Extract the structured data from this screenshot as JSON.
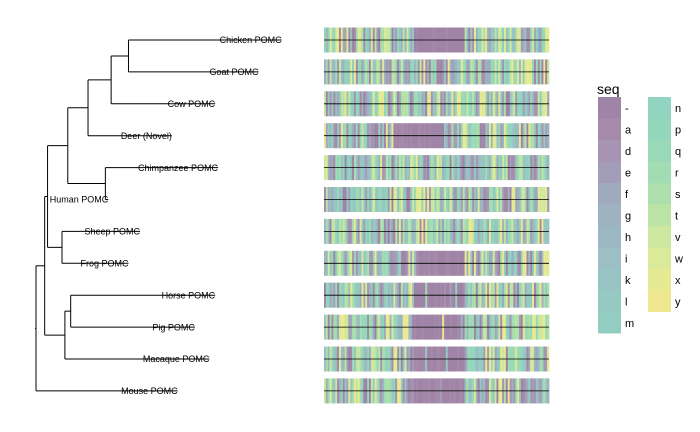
{
  "chart_data": {
    "type": "heatmap",
    "title": "",
    "tree": {
      "tips": [
        "Chicken POMC",
        "Goat POMC",
        "Cow POMC",
        "Deer (Novel)",
        "Chimpanzee POMC",
        "Human POMC",
        "Sheep POMC",
        "Frog POMC",
        "Horse POMC",
        "Pig POMC",
        "Macaque POMC",
        "Mouse POMC"
      ],
      "tip_depth": [
        0.85,
        0.77,
        0.62,
        0.47,
        0.63,
        0.25,
        0.36,
        0.32,
        0.62,
        0.55,
        0.6,
        0.49
      ],
      "clades": [
        {
          "children": [
            "Chicken POMC",
            "Goat POMC"
          ],
          "depth": 0.32
        },
        {
          "children": [
            "Chicken POMC",
            "Goat POMC",
            "Cow POMC"
          ],
          "depth": 0.26
        },
        {
          "children": [
            "Chicken POMC",
            "Goat POMC",
            "Cow POMC",
            "Deer (Novel)"
          ],
          "depth": 0.18
        },
        {
          "children": [
            "Chimpanzee POMC",
            "Human POMC"
          ],
          "depth": 0.24
        },
        {
          "children": [
            "Chicken POMC",
            "Goat POMC",
            "Cow POMC",
            "Deer (Novel)",
            "Chimpanzee POMC",
            "Human POMC"
          ],
          "depth": 0.11
        },
        {
          "children": [
            "Sheep POMC",
            "Frog POMC"
          ],
          "depth": 0.09
        },
        {
          "children": [
            "Chicken POMC",
            "Goat POMC",
            "Cow POMC",
            "Deer (Novel)",
            "Chimpanzee POMC",
            "Human POMC",
            "Sheep POMC",
            "Frog POMC"
          ],
          "depth": 0.04
        },
        {
          "children": [
            "Horse POMC",
            "Pig POMC"
          ],
          "depth": 0.12
        },
        {
          "children": [
            "Horse POMC",
            "Pig POMC",
            "Macaque POMC"
          ],
          "depth": 0.1
        },
        {
          "children": [
            "Chicken POMC",
            "Goat POMC",
            "Cow POMC",
            "Deer (Novel)",
            "Chimpanzee POMC",
            "Human POMC",
            "Sheep POMC",
            "Frog POMC",
            "Horse POMC",
            "Pig POMC",
            "Macaque POMC"
          ],
          "depth": 0.03
        },
        {
          "children": [
            "Chicken POMC",
            "Goat POMC",
            "Cow POMC",
            "Deer (Novel)",
            "Chimpanzee POMC",
            "Human POMC",
            "Sheep POMC",
            "Frog POMC",
            "Horse POMC",
            "Pig POMC",
            "Macaque POMC",
            "Mouse POMC"
          ],
          "depth": 0.0
        }
      ]
    },
    "alignment": {
      "length": 120,
      "gap_region": {
        "start_fraction": 0.4,
        "end_fraction": 0.62,
        "taxa": [
          "Chicken POMC",
          "Frog POMC",
          "Horse POMC",
          "Pig POMC",
          "Macaque POMC",
          "Mouse POMC"
        ]
      },
      "deer_gap_region": {
        "start_fraction": 0.3,
        "end_fraction": 0.55
      }
    },
    "legend": {
      "title": "seq",
      "position": "right",
      "levels": [
        "-",
        "a",
        "d",
        "e",
        "f",
        "g",
        "h",
        "i",
        "k",
        "l",
        "m",
        "n",
        "p",
        "q",
        "r",
        "s",
        "t",
        "v",
        "w",
        "x",
        "y"
      ],
      "colors": [
        "#a084a8",
        "#a58aaa",
        "#a794b2",
        "#a49db8",
        "#9faabd",
        "#9eb2c0",
        "#9bb8c2",
        "#9bbfc4",
        "#98c4c3",
        "#96c9c1",
        "#93cdc1",
        "#91d4c0",
        "#93d7bd",
        "#99d9b8",
        "#a1dcb2",
        "#acdfac",
        "#bce4a6",
        "#cce79f",
        "#dae99a",
        "#e5ea93",
        "#efe891"
      ]
    }
  }
}
